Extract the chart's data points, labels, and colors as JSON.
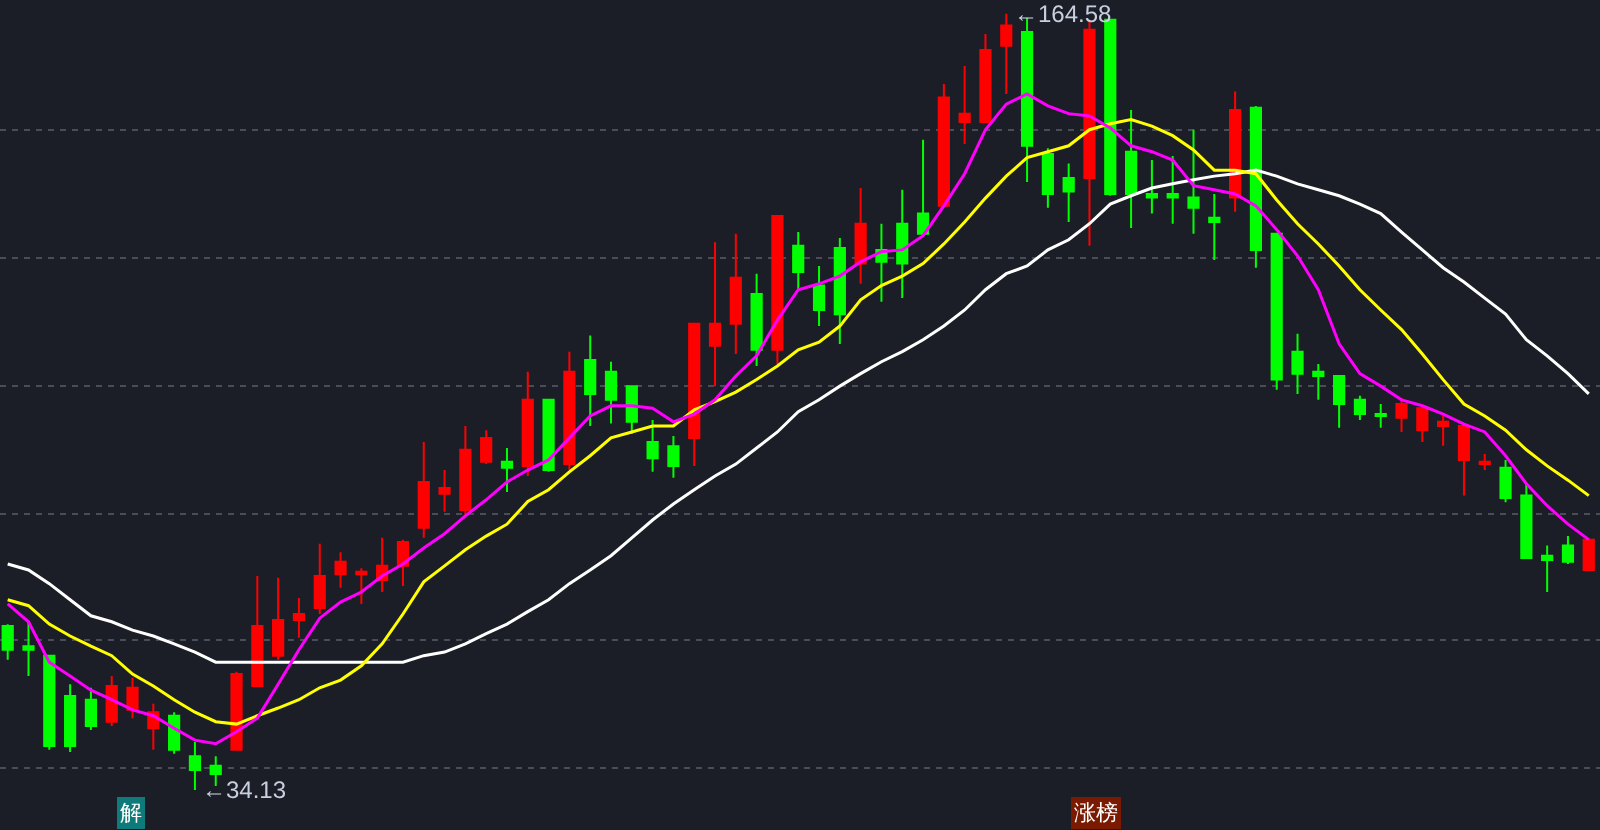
{
  "chart_data": {
    "type": "candlestick",
    "categories": [
      null,
      null,
      null,
      null,
      null,
      null,
      null,
      null,
      null,
      null,
      null,
      null,
      null,
      null,
      null,
      null,
      null,
      null,
      null,
      null,
      null,
      null,
      null,
      null,
      null,
      null,
      null,
      null,
      null,
      null,
      null,
      null,
      null,
      null,
      null,
      null,
      null,
      null,
      null,
      null,
      null,
      null,
      null,
      null,
      null,
      null,
      null,
      null,
      null,
      null,
      null,
      null,
      null,
      null,
      null,
      null,
      null,
      null,
      null,
      null,
      null,
      null,
      null,
      null,
      null,
      null,
      null,
      null,
      null,
      null,
      null,
      null,
      null,
      null,
      null,
      null,
      null
    ],
    "ohlc": [
      [
        61.7,
        62.0,
        56.0,
        57.7
      ],
      [
        58.3,
        62.4,
        53.3,
        57.7
      ],
      [
        56.7,
        56.7,
        40.9,
        41.5
      ],
      [
        49.9,
        51.9,
        40.5,
        41.5
      ],
      [
        49.3,
        51.3,
        44.2,
        44.9
      ],
      [
        45.6,
        53.3,
        44.9,
        51.6
      ],
      [
        47.6,
        53.0,
        46.2,
        51.3
      ],
      [
        44.5,
        48.6,
        40.9,
        47.2
      ],
      [
        46.6,
        47.2,
        40.2,
        40.9
      ],
      [
        39.8,
        42.2,
        34.13,
        37.5
      ],
      [
        38.2,
        39.8,
        34.8,
        36.8
      ],
      [
        40.9,
        54.0,
        40.9,
        53.6
      ],
      [
        51.6,
        70.1,
        51.6,
        61.7
      ],
      [
        56.7,
        69.8,
        56.0,
        62.7
      ],
      [
        62.7,
        66.4,
        59.7,
        63.7
      ],
      [
        64.7,
        75.5,
        63.7,
        70.1
      ],
      [
        70.4,
        74.1,
        68.1,
        72.5
      ],
      [
        70.4,
        71.4,
        65.4,
        70.8
      ],
      [
        69.4,
        76.5,
        67.4,
        71.8
      ],
      [
        71.8,
        76.2,
        68.4,
        75.8
      ],
      [
        78.2,
        92.6,
        76.5,
        85.9
      ],
      [
        83.9,
        87.9,
        80.9,
        84.9
      ],
      [
        81.2,
        95.3,
        80.2,
        91.3
      ],
      [
        89.3,
        94.6,
        88.9,
        93.3
      ],
      [
        89.3,
        91.6,
        84.2,
        88.3
      ],
      [
        88.6,
        104.4,
        86.9,
        99.7
      ],
      [
        99.7,
        99.7,
        87.6,
        87.9
      ],
      [
        88.9,
        107.8,
        87.9,
        104.4
      ],
      [
        106.4,
        110.5,
        95.3,
        100.7
      ],
      [
        104.4,
        106.1,
        95.7,
        99.7
      ],
      [
        102.0,
        102.0,
        94.0,
        96.0
      ],
      [
        92.6,
        96.3,
        87.6,
        89.9
      ],
      [
        91.9,
        93.6,
        86.6,
        88.6
      ],
      [
        93.3,
        112.5,
        88.6,
        112.5
      ],
      [
        108.8,
        126.2,
        102.0,
        112.5
      ],
      [
        112.5,
        127.6,
        107.4,
        120.2
      ],
      [
        117.5,
        120.9,
        105.4,
        108.1
      ],
      [
        108.1,
        130.6,
        105.7,
        130.6
      ],
      [
        125.6,
        127.9,
        118.2,
        121.2
      ],
      [
        118.9,
        122.2,
        112.1,
        114.8
      ],
      [
        125.2,
        126.9,
        109.1,
        114.1
      ],
      [
        122.6,
        135.3,
        119.2,
        129.3
      ],
      [
        124.9,
        129.3,
        116.2,
        122.9
      ],
      [
        129.3,
        135.0,
        116.8,
        122.6
      ],
      [
        131.0,
        143.4,
        127.6,
        127.6
      ],
      [
        132.3,
        152.8,
        132.3,
        150.5
      ],
      [
        146.4,
        155.8,
        142.7,
        147.8
      ],
      [
        146.4,
        161.2,
        146.4,
        158.5
      ],
      [
        159.2,
        164.58,
        151.1,
        162.6
      ],
      [
        161.5,
        163.9,
        136.3,
        142.4
      ],
      [
        141.0,
        142.0,
        132.0,
        134.3
      ],
      [
        137.0,
        139.4,
        129.6,
        134.7
      ],
      [
        137.0,
        163.6,
        125.6,
        161.9
      ],
      [
        163.6,
        163.6,
        134.0,
        134.3
      ],
      [
        141.4,
        148.4,
        128.6,
        134.3
      ],
      [
        134.3,
        140.0,
        131.0,
        133.7
      ],
      [
        134.3,
        140.7,
        129.3,
        133.7
      ],
      [
        133.7,
        145.1,
        127.6,
        132.0
      ],
      [
        130.3,
        134.3,
        123.2,
        129.6
      ],
      [
        133.7,
        151.5,
        131.3,
        148.4
      ],
      [
        148.8,
        149.1,
        121.9,
        124.9
      ],
      [
        127.6,
        127.6,
        101.4,
        103.1
      ],
      [
        107.8,
        110.8,
        100.7,
        104.1
      ],
      [
        104.4,
        105.7,
        99.7,
        103.7
      ],
      [
        103.7,
        103.7,
        95.0,
        99.0
      ],
      [
        99.7,
        100.4,
        96.3,
        97.3
      ],
      [
        97.3,
        99.0,
        95.0,
        97.0
      ],
      [
        96.7,
        100.0,
        94.3,
        99.0
      ],
      [
        94.6,
        98.3,
        92.6,
        98.3
      ],
      [
        95.3,
        97.0,
        92.0,
        96.0
      ],
      [
        89.6,
        95.3,
        83.6,
        95.3
      ],
      [
        88.9,
        90.6,
        87.9,
        89.3
      ],
      [
        88.3,
        89.6,
        82.5,
        83.2
      ],
      [
        83.6,
        85.6,
        73.1,
        73.1
      ],
      [
        73.5,
        75.2,
        67.4,
        72.8
      ],
      [
        75.2,
        76.8,
        72.1,
        72.5
      ],
      [
        71.1,
        76.2,
        71.1,
        76.2
      ]
    ],
    "colors": [
      "#00ff00",
      "#00ff00",
      "#00ff00",
      "#00ff00",
      "#00ff00",
      "#ff0000",
      "#ff0000",
      "#ff0000",
      "#00ff00",
      "#00ff00",
      "#00ff00",
      "#ff0000",
      "#ff0000",
      "#ff0000",
      "#ff0000",
      "#ff0000",
      "#ff0000",
      "#ff0000",
      "#ff0000",
      "#ff0000",
      "#ff0000",
      "#ff0000",
      "#ff0000",
      "#ff0000",
      "#00ff00",
      "#ff0000",
      "#00ff00",
      "#ff0000",
      "#00ff00",
      "#00ff00",
      "#00ff00",
      "#00ff00",
      "#00ff00",
      "#ff0000",
      "#ff0000",
      "#ff0000",
      "#00ff00",
      "#ff0000",
      "#00ff00",
      "#00ff00",
      "#00ff00",
      "#ff0000",
      "#00ff00",
      "#00ff00",
      "#00ff00",
      "#ff0000",
      "#ff0000",
      "#ff0000",
      "#ff0000",
      "#00ff00",
      "#00ff00",
      "#00ff00",
      "#ff0000",
      "#00ff00",
      "#00ff00",
      "#00ff00",
      "#00ff00",
      "#00ff00",
      "#00ff00",
      "#ff0000",
      "#00ff00",
      "#00ff00",
      "#00ff00",
      "#00ff00",
      "#00ff00",
      "#00ff00",
      "#00ff00",
      "#ff0000",
      "#ff0000",
      "#ff0000",
      "#ff0000",
      "#ff0000",
      "#00ff00",
      "#00ff00",
      "#00ff00",
      "#00ff00",
      "#ff0000"
    ],
    "series": [
      {
        "type": "line",
        "color": "#ffffff",
        "values": [
          72.1,
          71.1,
          68.8,
          66.1,
          63.4,
          62.4,
          61.0,
          60.0,
          58.7,
          57.3,
          55.6,
          55.6,
          55.6,
          55.6,
          55.6,
          55.6,
          55.6,
          55.6,
          55.6,
          55.6,
          56.7,
          57.3,
          58.7,
          60.4,
          62.0,
          64.1,
          66.1,
          68.8,
          71.1,
          73.5,
          76.5,
          79.5,
          82.2,
          84.6,
          86.9,
          88.9,
          91.6,
          94.3,
          97.7,
          99.7,
          102.0,
          104.1,
          106.1,
          107.8,
          109.8,
          112.1,
          114.8,
          118.2,
          120.9,
          122.2,
          124.9,
          126.6,
          129.3,
          132.6,
          134.0,
          135.3,
          136.0,
          136.7,
          137.3,
          137.7,
          138.3,
          137.3,
          136.0,
          135.0,
          134.0,
          132.6,
          131.0,
          127.9,
          124.9,
          121.9,
          119.5,
          116.8,
          114.1,
          109.8,
          107.1,
          104.1,
          100.7
        ]
      },
      {
        "type": "line",
        "color": "#ffff00",
        "values": [
          66.1,
          65.1,
          62.0,
          60.0,
          58.3,
          56.7,
          53.6,
          51.6,
          49.3,
          47.2,
          45.6,
          45.2,
          46.6,
          47.9,
          49.3,
          51.3,
          52.6,
          55.0,
          58.7,
          63.7,
          69.1,
          71.8,
          74.5,
          76.8,
          78.8,
          82.6,
          84.6,
          87.6,
          90.3,
          93.3,
          94.3,
          95.3,
          95.3,
          98.0,
          99.4,
          101.0,
          103.1,
          105.4,
          108.1,
          109.4,
          112.1,
          116.5,
          118.9,
          120.5,
          122.6,
          125.9,
          129.6,
          133.6,
          137.3,
          140.4,
          141.4,
          142.4,
          145.1,
          146.1,
          146.8,
          145.7,
          144.1,
          141.7,
          138.3,
          138.3,
          137.7,
          133.3,
          129.3,
          125.9,
          122.2,
          118.2,
          114.8,
          111.5,
          107.4,
          103.1,
          99.0,
          97.0,
          94.6,
          91.3,
          88.6,
          86.2,
          83.6
        ]
      },
      {
        "type": "line",
        "color": "#ff00ff",
        "values": [
          65.4,
          62.4,
          55.6,
          53.3,
          50.9,
          49.3,
          47.6,
          46.6,
          44.5,
          42.5,
          41.9,
          43.9,
          46.2,
          51.9,
          57.7,
          63.0,
          65.7,
          67.4,
          70.1,
          72.1,
          74.8,
          77.2,
          80.2,
          82.9,
          85.9,
          87.9,
          89.6,
          93.3,
          97.0,
          98.7,
          98.7,
          98.3,
          96.0,
          97.3,
          99.7,
          103.7,
          107.1,
          113.1,
          118.2,
          119.2,
          120.5,
          122.9,
          124.6,
          124.9,
          127.3,
          132.3,
          137.7,
          145.1,
          149.4,
          151.1,
          149.1,
          147.8,
          147.4,
          145.4,
          142.4,
          141.4,
          140.0,
          135.7,
          135.0,
          134.3,
          132.3,
          128.3,
          123.9,
          118.2,
          109.1,
          104.1,
          102.0,
          99.7,
          98.7,
          97.3,
          95.6,
          94.3,
          90.3,
          85.6,
          81.9,
          78.8,
          76.2
        ]
      }
    ],
    "ylim": [
      27.4,
      166.9
    ],
    "yticks": [
      {
        "value": 37.8,
        "label": null
      },
      {
        "value": 59.3,
        "label": null
      },
      {
        "value": 80.5,
        "label": null
      },
      {
        "value": 102.0,
        "label": null
      },
      {
        "value": 123.6,
        "label": null
      },
      {
        "value": 145.1,
        "label": null
      }
    ],
    "grid": "y",
    "tick_labels": false,
    "annotations": [
      "←164.58",
      "←34.13",
      "解",
      "涨榜"
    ]
  }
}
